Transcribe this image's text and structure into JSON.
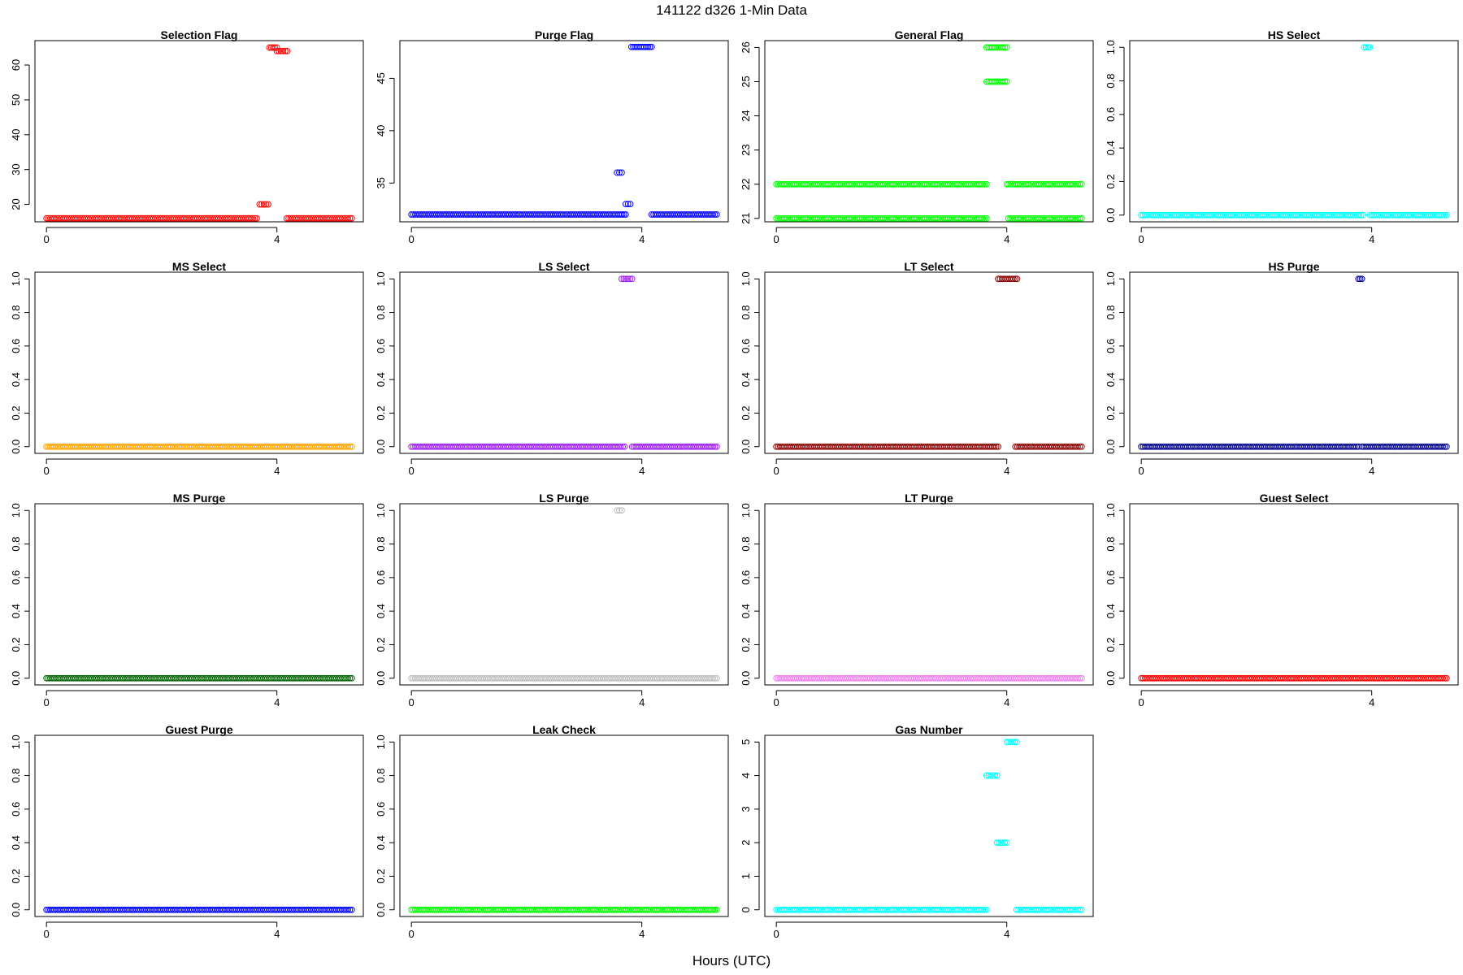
{
  "figure": {
    "title": "141122   d326   1-Min Data",
    "xlabel": "Hours (UTC)"
  },
  "chart_data": [
    {
      "type": "scatter",
      "title": "Selection Flag",
      "color": "#ff0000",
      "xlim": [
        -0.2,
        5.5
      ],
      "ylim": [
        15,
        67
      ],
      "xticks": [
        0,
        4
      ],
      "yticks": [
        20,
        30,
        40,
        50,
        60
      ],
      "segments": [
        {
          "x0": 0,
          "x1": 3.65,
          "y": 16
        },
        {
          "x0": 3.7,
          "x1": 3.85,
          "y": 20
        },
        {
          "x0": 3.87,
          "x1": 4.0,
          "y": 65
        },
        {
          "x0": 4.0,
          "x1": 4.18,
          "y": 64
        },
        {
          "x0": 4.17,
          "x1": 5.3,
          "y": 16
        }
      ]
    },
    {
      "type": "scatter",
      "title": "Purge Flag",
      "color": "#0000ff",
      "xlim": [
        -0.2,
        5.5
      ],
      "ylim": [
        31.3,
        48.6
      ],
      "xticks": [
        0,
        4
      ],
      "yticks": [
        35,
        40,
        45
      ],
      "segments": [
        {
          "x0": 0,
          "x1": 3.6,
          "y": 32
        },
        {
          "x0": 3.57,
          "x1": 3.65,
          "y": 36
        },
        {
          "x0": 3.63,
          "x1": 3.72,
          "y": 32
        },
        {
          "x0": 3.72,
          "x1": 3.8,
          "y": 33
        },
        {
          "x0": 3.82,
          "x1": 4.17,
          "y": 48
        },
        {
          "x0": 4.17,
          "x1": 5.3,
          "y": 32
        }
      ]
    },
    {
      "type": "scatter",
      "title": "General Flag",
      "color": "#00ff00",
      "xlim": [
        -0.2,
        5.5
      ],
      "ylim": [
        20.9,
        26.2
      ],
      "xticks": [
        0,
        4
      ],
      "yticks": [
        21,
        22,
        23,
        24,
        25,
        26
      ],
      "segments": [
        {
          "x0": 0,
          "x1": 3.65,
          "y": 22
        },
        {
          "x0": 0,
          "x1": 3.65,
          "y": 21
        },
        {
          "x0": 3.65,
          "x1": 4.0,
          "y": 26
        },
        {
          "x0": 3.65,
          "x1": 4.0,
          "y": 25
        },
        {
          "x0": 4.0,
          "x1": 5.3,
          "y": 22
        },
        {
          "x0": 4.03,
          "x1": 5.3,
          "y": 21
        }
      ]
    },
    {
      "type": "scatter",
      "title": "HS Select",
      "color": "#00ffff",
      "xlim": [
        -0.2,
        5.5
      ],
      "ylim": [
        -0.04,
        1.04
      ],
      "xticks": [
        0,
        4
      ],
      "yticks": [
        0.0,
        0.2,
        0.4,
        0.6,
        0.8,
        1.0
      ],
      "segments": [
        {
          "x0": 0,
          "x1": 3.85,
          "y": 0
        },
        {
          "x0": 3.87,
          "x1": 3.97,
          "y": 1
        },
        {
          "x0": 3.97,
          "x1": 5.3,
          "y": 0
        }
      ]
    },
    {
      "type": "scatter",
      "title": "MS Select",
      "color": "#ffa500",
      "xlim": [
        -0.2,
        5.5
      ],
      "ylim": [
        -0.04,
        1.04
      ],
      "xticks": [
        0,
        4
      ],
      "yticks": [
        0.0,
        0.2,
        0.4,
        0.6,
        0.8,
        1.0
      ],
      "segments": [
        {
          "x0": 0,
          "x1": 5.3,
          "y": 0
        }
      ]
    },
    {
      "type": "scatter",
      "title": "LS Select",
      "color": "#a020f0",
      "xlim": [
        -0.2,
        5.5
      ],
      "ylim": [
        -0.04,
        1.04
      ],
      "xticks": [
        0,
        4
      ],
      "yticks": [
        0.0,
        0.2,
        0.4,
        0.6,
        0.8,
        1.0
      ],
      "segments": [
        {
          "x0": 0,
          "x1": 3.7,
          "y": 0
        },
        {
          "x0": 3.65,
          "x1": 3.83,
          "y": 1
        },
        {
          "x0": 3.83,
          "x1": 5.3,
          "y": 0
        }
      ]
    },
    {
      "type": "scatter",
      "title": "LT Select",
      "color": "#8b0000",
      "xlim": [
        -0.2,
        5.5
      ],
      "ylim": [
        -0.04,
        1.04
      ],
      "xticks": [
        0,
        4
      ],
      "yticks": [
        0.0,
        0.2,
        0.4,
        0.6,
        0.8,
        1.0
      ],
      "segments": [
        {
          "x0": 0,
          "x1": 3.85,
          "y": 0
        },
        {
          "x0": 3.85,
          "x1": 4.18,
          "y": 1
        },
        {
          "x0": 4.15,
          "x1": 5.3,
          "y": 0
        }
      ]
    },
    {
      "type": "scatter",
      "title": "HS Purge",
      "color": "#00008b",
      "xlim": [
        -0.2,
        5.5
      ],
      "ylim": [
        -0.04,
        1.04
      ],
      "xticks": [
        0,
        4
      ],
      "yticks": [
        0.0,
        0.2,
        0.4,
        0.6,
        0.8,
        1.0
      ],
      "segments": [
        {
          "x0": 0,
          "x1": 3.77,
          "y": 0
        },
        {
          "x0": 3.77,
          "x1": 3.83,
          "y": 1
        },
        {
          "x0": 3.83,
          "x1": 5.3,
          "y": 0
        }
      ]
    },
    {
      "type": "scatter",
      "title": "MS Purge",
      "color": "#006400",
      "xlim": [
        -0.2,
        5.5
      ],
      "ylim": [
        -0.04,
        1.04
      ],
      "xticks": [
        0,
        4
      ],
      "yticks": [
        0.0,
        0.2,
        0.4,
        0.6,
        0.8,
        1.0
      ],
      "segments": [
        {
          "x0": 0,
          "x1": 5.3,
          "y": 0
        }
      ]
    },
    {
      "type": "scatter",
      "title": "LS Purge",
      "color": "#bebebe",
      "xlim": [
        -0.2,
        5.5
      ],
      "ylim": [
        -0.04,
        1.04
      ],
      "xticks": [
        0,
        4
      ],
      "yticks": [
        0.0,
        0.2,
        0.4,
        0.6,
        0.8,
        1.0
      ],
      "segments": [
        {
          "x0": 0,
          "x1": 5.3,
          "y": 0
        },
        {
          "x0": 3.57,
          "x1": 3.65,
          "y": 1
        }
      ]
    },
    {
      "type": "scatter",
      "title": "LT Purge",
      "color": "#ee82ee",
      "xlim": [
        -0.2,
        5.5
      ],
      "ylim": [
        -0.04,
        1.04
      ],
      "xticks": [
        0,
        4
      ],
      "yticks": [
        0.0,
        0.2,
        0.4,
        0.6,
        0.8,
        1.0
      ],
      "segments": [
        {
          "x0": 0,
          "x1": 5.3,
          "y": 0
        }
      ]
    },
    {
      "type": "scatter",
      "title": "Guest Select",
      "color": "#ff0000",
      "xlim": [
        -0.2,
        5.5
      ],
      "ylim": [
        -0.04,
        1.04
      ],
      "xticks": [
        0,
        4
      ],
      "yticks": [
        0.0,
        0.2,
        0.4,
        0.6,
        0.8,
        1.0
      ],
      "segments": [
        {
          "x0": 0,
          "x1": 5.3,
          "y": 0
        }
      ]
    },
    {
      "type": "scatter",
      "title": "Guest Purge",
      "color": "#0000ff",
      "xlim": [
        -0.2,
        5.5
      ],
      "ylim": [
        -0.04,
        1.04
      ],
      "xticks": [
        0,
        4
      ],
      "yticks": [
        0.0,
        0.2,
        0.4,
        0.6,
        0.8,
        1.0
      ],
      "segments": [
        {
          "x0": 0,
          "x1": 5.3,
          "y": 0
        }
      ]
    },
    {
      "type": "scatter",
      "title": "Leak Check",
      "color": "#00ff00",
      "xlim": [
        -0.2,
        5.5
      ],
      "ylim": [
        -0.04,
        1.04
      ],
      "xticks": [
        0,
        4
      ],
      "yticks": [
        0.0,
        0.2,
        0.4,
        0.6,
        0.8,
        1.0
      ],
      "segments": [
        {
          "x0": 0,
          "x1": 5.3,
          "y": 0
        }
      ]
    },
    {
      "type": "scatter",
      "title": "Gas Number",
      "color": "#00ffff",
      "xlim": [
        -0.2,
        5.5
      ],
      "ylim": [
        -0.2,
        5.2
      ],
      "xticks": [
        0,
        4
      ],
      "yticks": [
        0,
        1,
        2,
        3,
        4,
        5
      ],
      "segments": [
        {
          "x0": 0,
          "x1": 3.65,
          "y": 0
        },
        {
          "x0": 3.65,
          "x1": 3.83,
          "y": 4
        },
        {
          "x0": 3.83,
          "x1": 4.0,
          "y": 2
        },
        {
          "x0": 4.0,
          "x1": 4.17,
          "y": 5
        },
        {
          "x0": 4.17,
          "x1": 5.3,
          "y": 0
        }
      ]
    }
  ]
}
